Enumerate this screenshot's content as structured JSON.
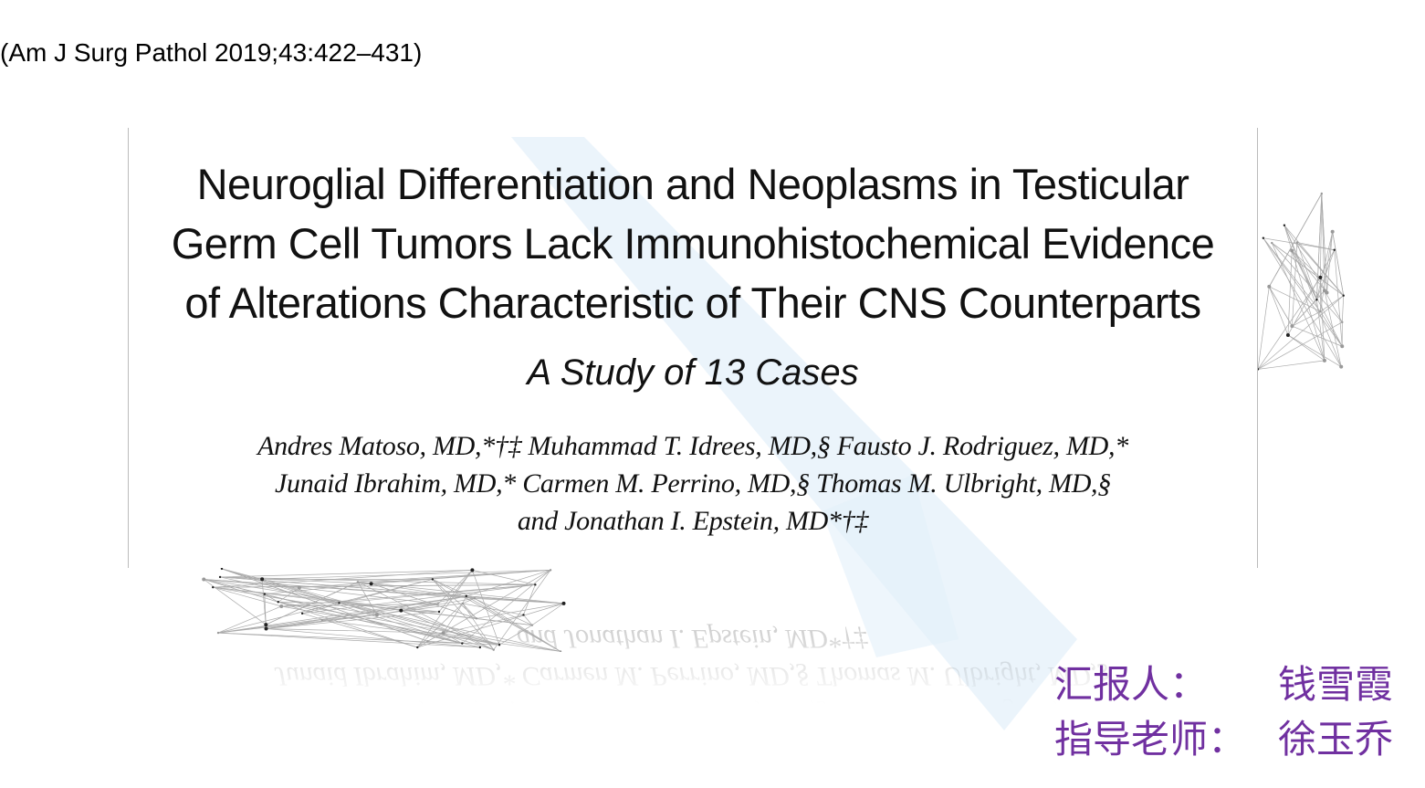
{
  "citation": "(Am J Surg Pathol 2019;43:422–431)",
  "paper": {
    "title_lines": [
      "Neuroglial Differentiation and Neoplasms in Testicular",
      "Germ Cell Tumors Lack Immunohistochemical Evidence",
      "of Alterations Characteristic of Their CNS Counterparts"
    ],
    "subtitle": "A Study of 13 Cases",
    "author_lines": [
      "Andres Matoso, MD,*†‡ Muhammad T. Idrees, MD,§ Fausto J. Rodriguez, MD,*",
      "Junaid Ibrahim, MD,* Carmen M. Perrino, MD,§ Thomas M. Ulbright, MD,§",
      "and Jonathan I. Epstein, MD*†‡"
    ]
  },
  "presenter": {
    "label": "汇报人：",
    "name": "钱雪霞"
  },
  "advisor": {
    "label": "指导老师：",
    "name": "徐玉乔"
  }
}
